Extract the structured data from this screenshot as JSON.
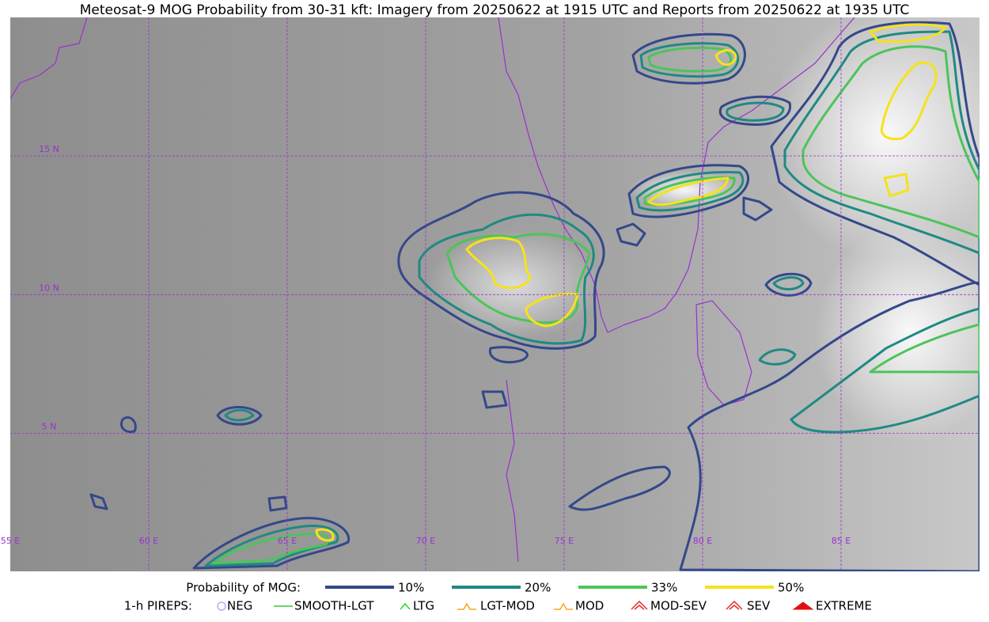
{
  "title": "Meteosat-9 MOG Probability from 30-31 kft: Imagery from 20250622 at 1915 UTC and Reports from 20250622 at 1935 UTC",
  "map": {
    "lat_labels": [
      "15 N",
      "10 N",
      "5 N"
    ],
    "lon_labels": [
      "55 E",
      "60 E",
      "65 E",
      "70 E",
      "75 E",
      "80 E",
      "85 E"
    ]
  },
  "legend": {
    "probability_label": "Probability of MOG:",
    "levels": [
      {
        "label": "10%",
        "color": "#34488a"
      },
      {
        "label": "20%",
        "color": "#1f8a82"
      },
      {
        "label": "33%",
        "color": "#4cc45a"
      },
      {
        "label": "50%",
        "color": "#f5e21c"
      }
    ],
    "pireps_label": "1-h PIREPS:",
    "pireps": [
      {
        "label": "NEG",
        "color": "#b0b0f0"
      },
      {
        "label": "SMOOTH-LGT",
        "color": "#33cc33"
      },
      {
        "label": "LTG",
        "color": "#22dd22"
      },
      {
        "label": "LGT-MOD",
        "color": "#f5a623"
      },
      {
        "label": "MOD",
        "color": "#f5a623"
      },
      {
        "label": "MOD-SEV",
        "color": "#e03030"
      },
      {
        "label": "SEV",
        "color": "#e03030"
      },
      {
        "label": "EXTREME",
        "color": "#e01010"
      }
    ]
  }
}
